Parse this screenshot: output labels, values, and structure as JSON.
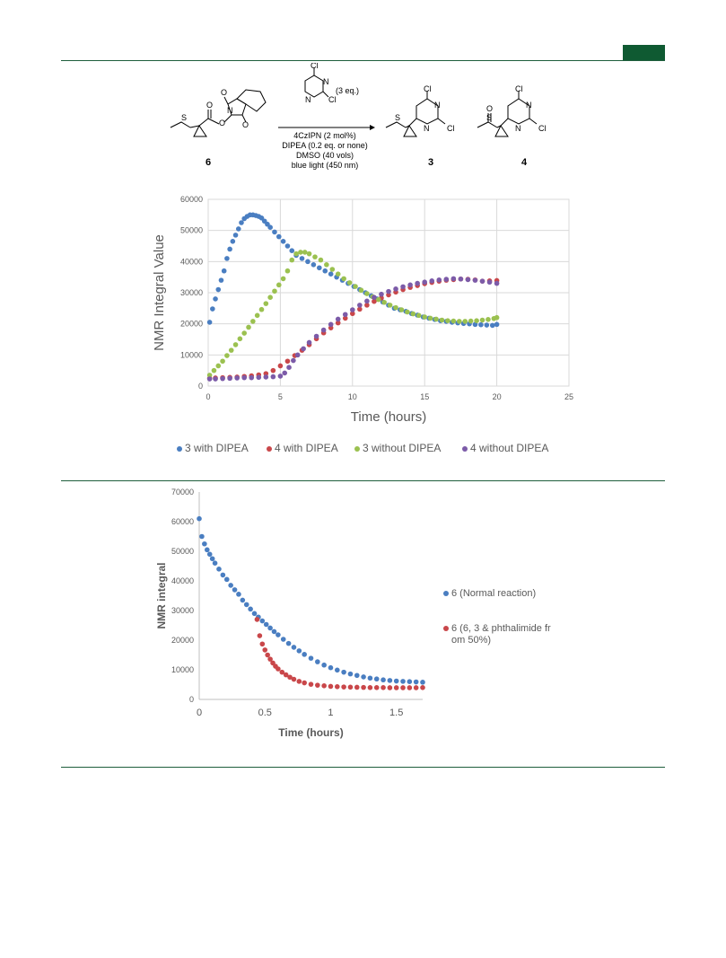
{
  "colors": {
    "header_tab": "#0f5a32",
    "rule": "#1e5e3c",
    "blue": "#4a7ec1",
    "red": "#c9474a",
    "green": "#9bc150",
    "purple": "#7c5ba8",
    "grid": "#d9d9d9"
  },
  "scheme": {
    "reagent_eq": "(3 eq.)",
    "conditions": [
      "4CzIPN (2 mol%)",
      "DIPEA (0.2 eq. or none)",
      "DMSO (40 vols)",
      "blue light (450 nm)"
    ],
    "compound_labels": [
      "6",
      "3",
      "4"
    ],
    "atoms": {
      "cl": "Cl",
      "n": "N",
      "o": "O",
      "s": "S"
    }
  },
  "chart_data": [
    {
      "type": "scatter",
      "xlabel": "Time (hours)",
      "ylabel": "NMR Integral Value",
      "xlim": [
        0,
        25
      ],
      "ylim": [
        0,
        60000
      ],
      "x_ticks": [
        "0",
        "5",
        "10",
        "15",
        "20",
        "25"
      ],
      "y_ticks": [
        "0",
        "10000",
        "20000",
        "30000",
        "40000",
        "50000",
        "60000"
      ],
      "grid": true,
      "legend_position": "bottom",
      "series": [
        {
          "name": "3 with DIPEA",
          "color": "#4a7ec1",
          "x": [
            0.1,
            0.3,
            0.5,
            0.7,
            0.9,
            1.1,
            1.3,
            1.5,
            1.7,
            1.9,
            2.1,
            2.3,
            2.5,
            2.7,
            2.9,
            3.1,
            3.3,
            3.5,
            3.7,
            3.9,
            4.1,
            4.3,
            4.6,
            4.9,
            5.2,
            5.5,
            5.8,
            6.1,
            6.5,
            6.9,
            7.3,
            7.7,
            8.1,
            8.5,
            8.9,
            9.3,
            9.7,
            10.1,
            10.5,
            10.9,
            11.3,
            11.7,
            12.1,
            12.5,
            12.9,
            13.3,
            13.7,
            14.1,
            14.5,
            14.9,
            15.3,
            15.7,
            16.1,
            16.5,
            16.9,
            17.3,
            17.7,
            18.1,
            18.5,
            18.9,
            19.3,
            19.7,
            20.0
          ],
          "y": [
            20500,
            24800,
            28000,
            31000,
            34000,
            37000,
            41000,
            44000,
            46500,
            48500,
            50500,
            52500,
            53800,
            54500,
            55000,
            55000,
            54800,
            54500,
            54000,
            53000,
            52000,
            51000,
            49500,
            48000,
            46500,
            45000,
            43500,
            42000,
            41000,
            40000,
            39000,
            38000,
            37000,
            36000,
            35000,
            34000,
            33000,
            32000,
            31000,
            30000,
            29000,
            28000,
            27000,
            26000,
            25000,
            24500,
            24000,
            23300,
            22800,
            22200,
            21800,
            21400,
            21000,
            20800,
            20500,
            20300,
            20100,
            20000,
            19800,
            19700,
            19600,
            19500,
            19800
          ]
        },
        {
          "name": "4 with DIPEA",
          "color": "#c9474a",
          "x": [
            0.1,
            0.5,
            1.0,
            1.5,
            2.0,
            2.5,
            3.0,
            3.5,
            4.0,
            4.5,
            5.0,
            5.5,
            6.0,
            6.5,
            7.0,
            7.5,
            8.0,
            8.5,
            9.0,
            9.5,
            10.0,
            10.5,
            11.0,
            11.5,
            12.0,
            12.5,
            13.0,
            13.5,
            14.0,
            14.5,
            15.0,
            15.5,
            16.0,
            16.5,
            17.0,
            17.5,
            18.0,
            18.5,
            19.0,
            19.5,
            20.0
          ],
          "y": [
            2500,
            2600,
            2700,
            2800,
            2900,
            3100,
            3300,
            3600,
            4000,
            5000,
            6500,
            8000,
            9800,
            11500,
            13300,
            15200,
            17100,
            18700,
            20300,
            21800,
            23300,
            24700,
            26000,
            27200,
            28300,
            29300,
            30200,
            31000,
            31700,
            32300,
            32900,
            33300,
            33700,
            34000,
            34200,
            34400,
            34300,
            34100,
            33700,
            33800,
            33900
          ]
        },
        {
          "name": "3 without DIPEA",
          "color": "#9bc150",
          "x": [
            0.1,
            0.4,
            0.7,
            1.0,
            1.3,
            1.6,
            1.9,
            2.2,
            2.5,
            2.8,
            3.1,
            3.4,
            3.7,
            4.0,
            4.3,
            4.6,
            4.9,
            5.2,
            5.5,
            5.8,
            6.1,
            6.4,
            6.7,
            7.0,
            7.4,
            7.8,
            8.2,
            8.6,
            9.0,
            9.4,
            9.8,
            10.2,
            10.6,
            11.0,
            11.4,
            11.8,
            12.2,
            12.6,
            13.0,
            13.4,
            13.8,
            14.2,
            14.6,
            15.0,
            15.4,
            15.8,
            16.2,
            16.6,
            17.0,
            17.4,
            17.8,
            18.2,
            18.6,
            19.0,
            19.4,
            19.8,
            20.0
          ],
          "y": [
            3500,
            5000,
            6500,
            8000,
            9800,
            11500,
            13300,
            15200,
            17000,
            18900,
            20800,
            22700,
            24600,
            26500,
            28500,
            30500,
            32500,
            34500,
            37000,
            40500,
            42500,
            43000,
            43000,
            42500,
            41500,
            40500,
            39000,
            37500,
            36000,
            34500,
            33200,
            32000,
            30800,
            29700,
            28700,
            27800,
            26900,
            26000,
            25200,
            24500,
            23800,
            23200,
            22700,
            22200,
            21800,
            21500,
            21200,
            21000,
            20900,
            20800,
            20800,
            20900,
            21000,
            21200,
            21400,
            21700,
            22000
          ]
        },
        {
          "name": "4 without DIPEA",
          "color": "#7c5ba8",
          "x": [
            0.1,
            0.5,
            1.0,
            1.5,
            2.0,
            2.5,
            3.0,
            3.5,
            4.0,
            4.5,
            5.0,
            5.3,
            5.6,
            5.9,
            6.2,
            6.6,
            7.0,
            7.5,
            8.0,
            8.5,
            9.0,
            9.5,
            10.0,
            10.5,
            11.0,
            11.5,
            12.0,
            12.5,
            13.0,
            13.5,
            14.0,
            14.5,
            15.0,
            15.5,
            16.0,
            16.5,
            17.0,
            17.5,
            18.0,
            18.5,
            19.0,
            19.5,
            20.0
          ],
          "y": [
            2300,
            2300,
            2400,
            2500,
            2600,
            2700,
            2700,
            2800,
            2900,
            3000,
            3200,
            4200,
            6000,
            8200,
            10000,
            12000,
            14000,
            16000,
            18000,
            19800,
            21500,
            23000,
            24500,
            26000,
            27300,
            28500,
            29500,
            30400,
            31200,
            31900,
            32500,
            33000,
            33400,
            33800,
            34100,
            34300,
            34500,
            34400,
            34200,
            34000,
            33700,
            33400,
            33000
          ]
        }
      ]
    },
    {
      "type": "scatter",
      "xlabel": "Time (hours)",
      "ylabel": "NMR integral",
      "xlim": [
        0,
        1.7
      ],
      "ylim": [
        0,
        70000
      ],
      "x_ticks": [
        "0",
        "0.5",
        "1",
        "1.5"
      ],
      "y_ticks": [
        "0",
        "10000",
        "20000",
        "30000",
        "40000",
        "50000",
        "60000",
        "70000"
      ],
      "grid": false,
      "legend_position": "right",
      "series": [
        {
          "name": "6 (Normal reaction)",
          "color": "#4a7ec1",
          "x": [
            0.0,
            0.02,
            0.04,
            0.06,
            0.08,
            0.1,
            0.12,
            0.15,
            0.18,
            0.21,
            0.24,
            0.27,
            0.3,
            0.33,
            0.36,
            0.39,
            0.42,
            0.45,
            0.48,
            0.51,
            0.54,
            0.57,
            0.6,
            0.64,
            0.68,
            0.72,
            0.76,
            0.8,
            0.85,
            0.9,
            0.95,
            1.0,
            1.05,
            1.1,
            1.15,
            1.2,
            1.25,
            1.3,
            1.35,
            1.4,
            1.45,
            1.5,
            1.55,
            1.6,
            1.65,
            1.7
          ],
          "y": [
            61000,
            55000,
            52500,
            50500,
            49000,
            47500,
            46000,
            44000,
            42000,
            40500,
            38500,
            37000,
            35500,
            33500,
            32000,
            30500,
            29000,
            27800,
            26500,
            25300,
            24100,
            22900,
            21800,
            20300,
            18900,
            17600,
            16400,
            15200,
            13900,
            12700,
            11600,
            10700,
            9900,
            9200,
            8600,
            8100,
            7600,
            7200,
            6900,
            6600,
            6400,
            6200,
            6100,
            6000,
            5900,
            5800
          ]
        },
        {
          "name": "6 (6, 3 & phthalimide from 50%)",
          "color": "#c9474a",
          "x": [
            0.44,
            0.46,
            0.48,
            0.5,
            0.52,
            0.54,
            0.56,
            0.58,
            0.6,
            0.63,
            0.66,
            0.69,
            0.72,
            0.76,
            0.8,
            0.85,
            0.9,
            0.95,
            1.0,
            1.05,
            1.1,
            1.15,
            1.2,
            1.25,
            1.3,
            1.35,
            1.4,
            1.45,
            1.5,
            1.55,
            1.6,
            1.65,
            1.7
          ],
          "y": [
            27000,
            21500,
            18700,
            16700,
            15000,
            13600,
            12300,
            11200,
            10300,
            9200,
            8300,
            7500,
            6800,
            6100,
            5600,
            5100,
            4800,
            4600,
            4400,
            4300,
            4200,
            4150,
            4100,
            4050,
            4000,
            4000,
            4000,
            3950,
            3950,
            3950,
            3950,
            3950,
            4000
          ]
        }
      ]
    }
  ]
}
